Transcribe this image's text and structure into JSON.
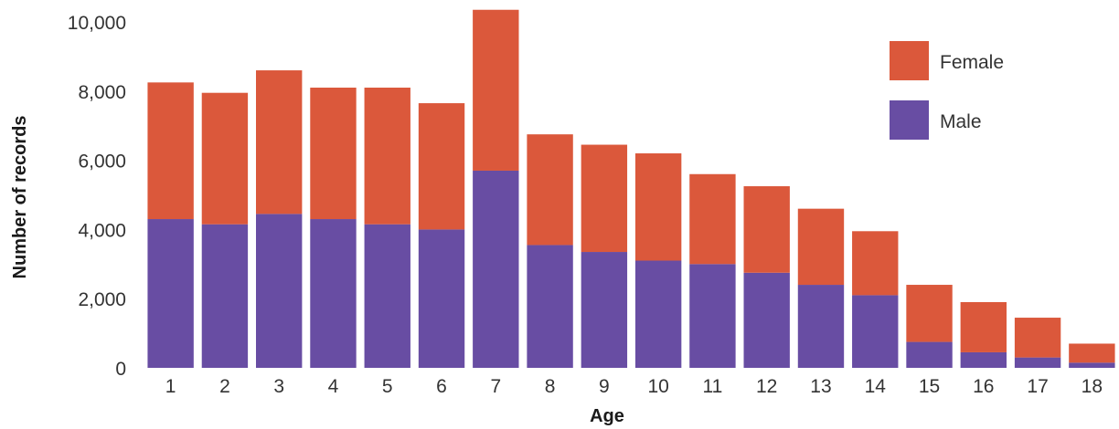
{
  "chart_data": {
    "type": "bar",
    "stacked": true,
    "title": "",
    "xlabel": "Age",
    "ylabel": "Number of records",
    "categories": [
      "1",
      "2",
      "3",
      "4",
      "5",
      "6",
      "7",
      "8",
      "9",
      "10",
      "11",
      "12",
      "13",
      "14",
      "15",
      "16",
      "17",
      "18"
    ],
    "series": [
      {
        "name": "Male",
        "color": "#684da3",
        "values": [
          4300,
          4150,
          4450,
          4300,
          4150,
          4000,
          5700,
          3550,
          3350,
          3100,
          3000,
          2750,
          2400,
          2100,
          750,
          450,
          300,
          150
        ]
      },
      {
        "name": "Female",
        "color": "#db583b",
        "values": [
          3950,
          3800,
          4150,
          3800,
          3950,
          3650,
          4650,
          3200,
          3100,
          3100,
          2600,
          2500,
          2200,
          1850,
          1650,
          1450,
          1150,
          550
        ]
      }
    ],
    "ylim": [
      0,
      10000
    ],
    "yticks": [
      0,
      2000,
      4000,
      6000,
      8000,
      10000
    ],
    "ytick_labels": [
      "0",
      "2,000",
      "4,000",
      "6,000",
      "8,000",
      "10,000"
    ],
    "grid": false,
    "legend": {
      "position": "top-right",
      "entries": [
        "Female",
        "Male"
      ]
    }
  }
}
